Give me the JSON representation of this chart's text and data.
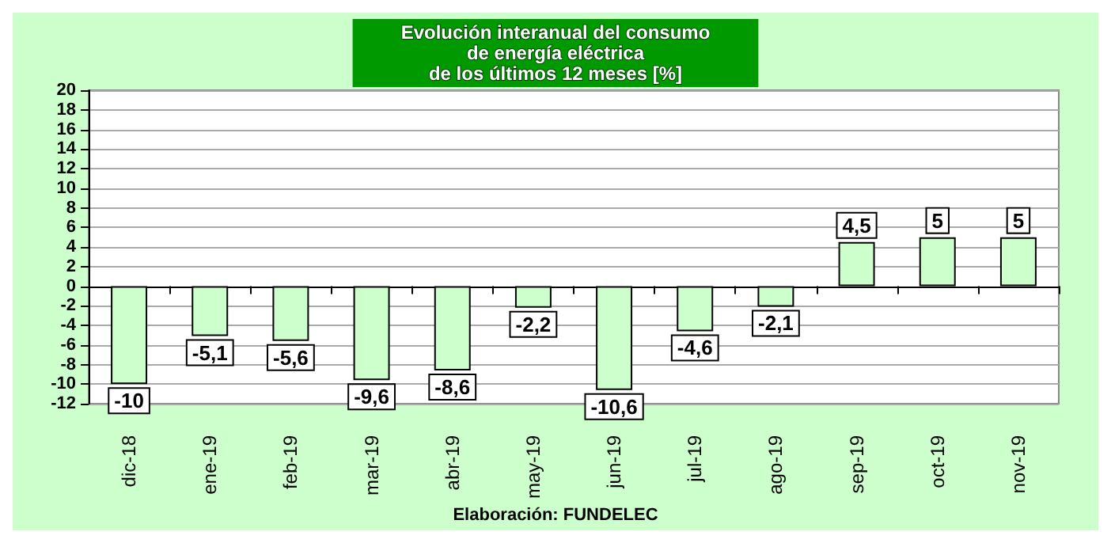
{
  "chart_data": {
    "type": "bar",
    "title": "Evolución interanual del consumo\nde energía eléctrica\nde los últimos 12 meses [%]",
    "categories": [
      "dic-18",
      "ene-19",
      "feb-19",
      "mar-19",
      "abr-19",
      "may-19",
      "jun-19",
      "jul-19",
      "ago-19",
      "sep-19",
      "oct-19",
      "nov-19"
    ],
    "values": [
      -10,
      -5.1,
      -5.6,
      -9.6,
      -8.6,
      -2.2,
      -10.6,
      -4.6,
      -2.1,
      4.5,
      5,
      5
    ],
    "value_labels": [
      "-10",
      "-5,1",
      "-5,6",
      "-9,6",
      "-8,6",
      "-2,2",
      "-10,6",
      "-4,6",
      "-2,1",
      "4,5",
      "5",
      "5"
    ],
    "color": "#ccffcc",
    "ylim": [
      -12,
      20
    ],
    "yticks": [
      -12,
      -10,
      -8,
      -6,
      -4,
      -2,
      0,
      2,
      4,
      6,
      8,
      10,
      12,
      14,
      16,
      18,
      20
    ],
    "grid": "y",
    "annotations": [
      "Elaboración: FUNDELEC"
    ]
  }
}
